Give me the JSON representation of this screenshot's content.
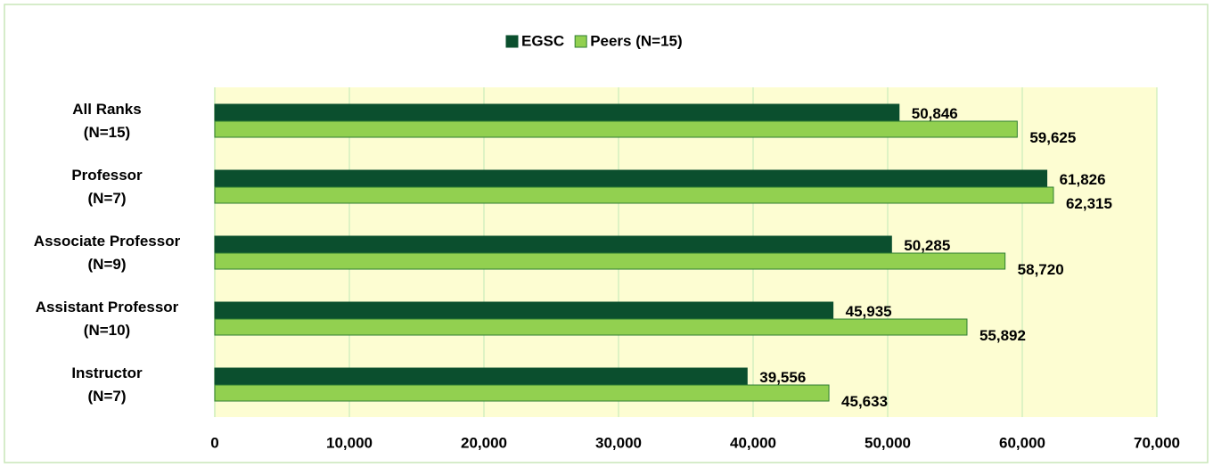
{
  "chart_data": {
    "type": "hbar",
    "categories": [
      "All Ranks\n(N=15)",
      "Professor\n(N=7)",
      "Associate Professor\n(N=9)",
      "Assistant Professor\n(N=10)",
      "Instructor\n(N=7)"
    ],
    "series": [
      {
        "name": "EGSC",
        "color": "#0b4f2e",
        "values": [
          50846,
          61826,
          50285,
          45935,
          39556
        ],
        "value_labels": [
          "50,846",
          "61,826",
          "50,285",
          "45,935",
          "39,556"
        ]
      },
      {
        "name": "Peers (N=15)",
        "color": "#92d050",
        "values": [
          59625,
          62315,
          58720,
          55892,
          45633
        ],
        "value_labels": [
          "59,625",
          "62,315",
          "58,720",
          "55,892",
          "45,633"
        ]
      }
    ],
    "xlim": [
      0,
      70000
    ],
    "xticks": [
      0,
      {
        "value": 10000,
        "label": "10,000"
      },
      {
        "value": 20000,
        "label": "20,000"
      },
      {
        "value": 30000,
        "label": "30,000"
      },
      {
        "value": 40000,
        "label": "40,000"
      },
      {
        "value": 50000,
        "label": "50,000"
      },
      {
        "value": 60000,
        "label": "60,000"
      },
      {
        "value": 70000,
        "label": "70,000"
      }
    ],
    "grid": true,
    "legend": "top"
  }
}
